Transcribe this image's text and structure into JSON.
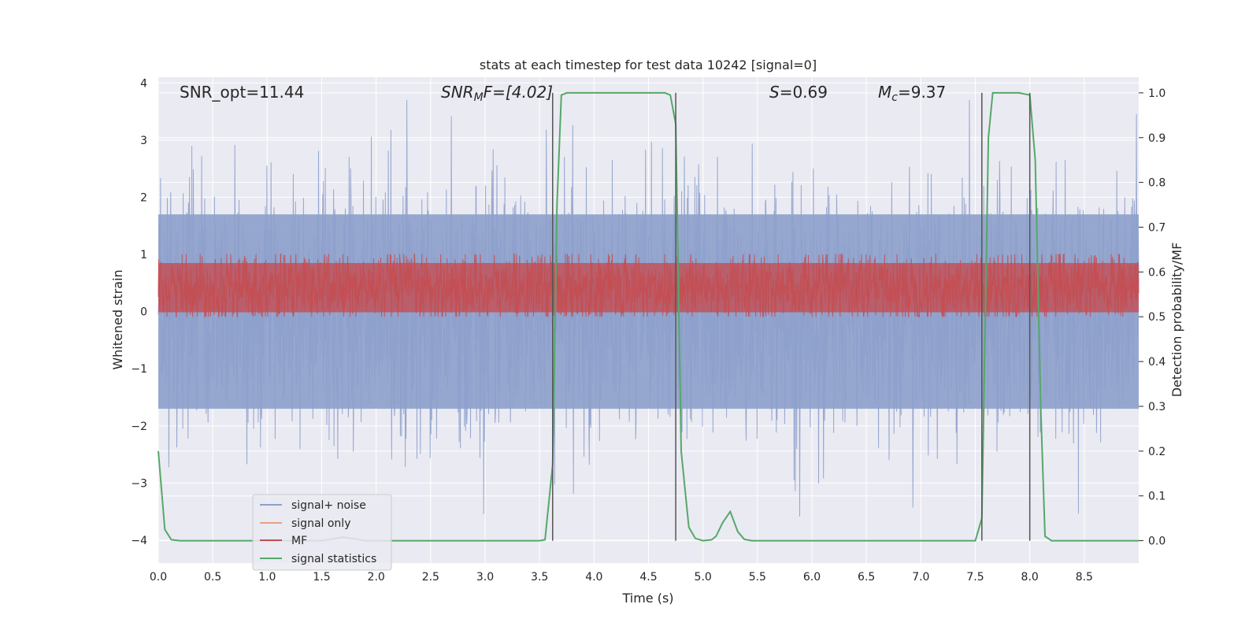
{
  "chart_data": {
    "type": "line",
    "title": "stats at each timestep for test data 10242 [signal=0]",
    "xlabel": "Time (s)",
    "ylabel": "Whitened strain",
    "y2label": "Detection probability/MF",
    "xlim": [
      0,
      9.0
    ],
    "ylim": [
      -4.4,
      4.1
    ],
    "y2lim": [
      -0.05,
      1.035
    ],
    "xticks": [
      0.0,
      0.5,
      1.0,
      1.5,
      2.0,
      2.5,
      3.0,
      3.5,
      4.0,
      4.5,
      5.0,
      5.5,
      6.0,
      6.5,
      7.0,
      7.5,
      8.0,
      8.5
    ],
    "xtick_labels": [
      "0.0",
      "0.5",
      "1.0",
      "1.5",
      "2.0",
      "2.5",
      "3.0",
      "3.5",
      "4.0",
      "4.5",
      "5.0",
      "5.5",
      "6.0",
      "6.5",
      "7.0",
      "7.5",
      "8.0",
      "8.5"
    ],
    "yticks": [
      -4,
      -3,
      -2,
      -1,
      0,
      1,
      2,
      3,
      4
    ],
    "ytick_labels": [
      "−4",
      "−3",
      "−2",
      "−1",
      "0",
      "1",
      "2",
      "3",
      "4"
    ],
    "y2ticks": [
      0.0,
      0.1,
      0.2,
      0.3,
      0.4,
      0.5,
      0.6,
      0.7,
      0.8,
      0.9,
      1.0
    ],
    "y2tick_labels": [
      "0.0",
      "0.1",
      "0.2",
      "0.3",
      "0.4",
      "0.5",
      "0.6",
      "0.7",
      "0.8",
      "0.9",
      "1.0"
    ],
    "grid": true,
    "legend_position": "lower-left",
    "annotations": {
      "snr_opt": "SNR_opt=11.44",
      "snr_mf_sym": "SNR",
      "snr_mf_sub": "M",
      "snr_mf_rest": "F=[4.02]",
      "s_sym": "S",
      "s_rest": "=0.69",
      "mc_sym": "M",
      "mc_sub": "c",
      "mc_rest": "=9.37"
    },
    "series": [
      {
        "name": "signal+ noise",
        "color": "#8da0cb",
        "axis": "left",
        "kind": "noise",
        "band": [
          -1.7,
          1.7
        ],
        "peak_max": 3.7,
        "peak_min": -3.6
      },
      {
        "name": "signal only",
        "color": "#e8a186",
        "axis": "left",
        "kind": "flat",
        "value": 0.0
      },
      {
        "name": "MF",
        "color": "#c44e52",
        "axis": "right",
        "kind": "noise",
        "band": [
          0.51,
          0.62
        ],
        "peak_max": 0.64,
        "peak_min": 0.5
      },
      {
        "name": "signal statistics",
        "color": "#55a868",
        "axis": "right",
        "kind": "line",
        "x": [
          0.0,
          0.06,
          0.12,
          0.2,
          0.5,
          1.0,
          1.5,
          1.7,
          1.9,
          2.5,
          3.0,
          3.5,
          3.55,
          3.62,
          3.66,
          3.7,
          3.75,
          4.0,
          4.5,
          4.65,
          4.7,
          4.75,
          4.8,
          4.87,
          4.93,
          5.0,
          5.08,
          5.12,
          5.18,
          5.25,
          5.32,
          5.38,
          5.45,
          5.5,
          6.0,
          6.5,
          7.0,
          7.5,
          7.56,
          7.62,
          7.66,
          7.9,
          8.0,
          8.05,
          8.1,
          8.14,
          8.2,
          8.5,
          9.0
        ],
        "values": [
          0.2,
          0.025,
          0.002,
          0.0,
          0.0,
          0.0,
          0.0,
          0.008,
          0.0,
          0.0,
          0.0,
          0.0,
          0.002,
          0.17,
          0.75,
          0.995,
          1.0,
          1.0,
          1.0,
          1.0,
          0.995,
          0.93,
          0.2,
          0.03,
          0.005,
          0.0,
          0.002,
          0.01,
          0.04,
          0.065,
          0.02,
          0.003,
          0.0,
          0.0,
          0.0,
          0.0,
          0.0,
          0.0,
          0.05,
          0.9,
          1.0,
          1.0,
          0.995,
          0.85,
          0.3,
          0.01,
          0.0,
          0.0,
          0.0
        ]
      }
    ],
    "vlines": [
      {
        "x": 3.62,
        "y": [
          0.0,
          1.0
        ],
        "color": "#555555"
      },
      {
        "x": 4.75,
        "y": [
          0.0,
          1.0
        ],
        "color": "#555555"
      },
      {
        "x": 7.56,
        "y": [
          0.0,
          1.0
        ],
        "color": "#555555"
      },
      {
        "x": 8.0,
        "y": [
          0.0,
          1.0
        ],
        "color": "#555555"
      }
    ]
  }
}
